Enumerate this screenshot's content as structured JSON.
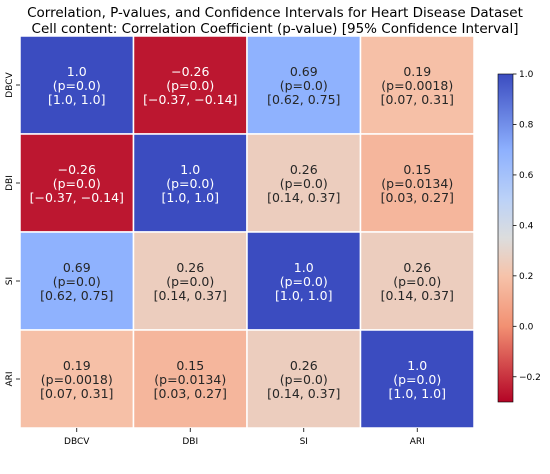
{
  "chart_data": {
    "type": "heatmap",
    "title": "Correlation, P-values, and Confidence Intervals for Heart Disease Dataset",
    "subtitle": "Cell content: Correlation Coefficient (p-value) [95% Confidence Interval]",
    "rows": [
      "DBCV",
      "DBI",
      "SI",
      "ARI"
    ],
    "columns": [
      "DBCV",
      "DBI",
      "SI",
      "ARI"
    ],
    "values": [
      [
        1.0,
        -0.26,
        0.69,
        0.19
      ],
      [
        -0.26,
        1.0,
        0.26,
        0.15
      ],
      [
        0.69,
        0.26,
        1.0,
        0.26
      ],
      [
        0.19,
        0.15,
        0.26,
        1.0
      ]
    ],
    "cells": [
      [
        {
          "r": "1.0",
          "p": "(p=0.0)",
          "ci": "[1.0, 1.0]"
        },
        {
          "r": "−0.26",
          "p": "(p=0.0)",
          "ci": "[−0.37, −0.14]"
        },
        {
          "r": "0.69",
          "p": "(p=0.0)",
          "ci": "[0.62, 0.75]"
        },
        {
          "r": "0.19",
          "p": "(p=0.0018)",
          "ci": "[0.07, 0.31]"
        }
      ],
      [
        {
          "r": "−0.26",
          "p": "(p=0.0)",
          "ci": "[−0.37, −0.14]"
        },
        {
          "r": "1.0",
          "p": "(p=0.0)",
          "ci": "[1.0, 1.0]"
        },
        {
          "r": "0.26",
          "p": "(p=0.0)",
          "ci": "[0.14, 0.37]"
        },
        {
          "r": "0.15",
          "p": "(p=0.0134)",
          "ci": "[0.03, 0.27]"
        }
      ],
      [
        {
          "r": "0.69",
          "p": "(p=0.0)",
          "ci": "[0.62, 0.75]"
        },
        {
          "r": "0.26",
          "p": "(p=0.0)",
          "ci": "[0.14, 0.37]"
        },
        {
          "r": "1.0",
          "p": "(p=0.0)",
          "ci": "[1.0, 1.0]"
        },
        {
          "r": "0.26",
          "p": "(p=0.0)",
          "ci": "[0.14, 0.37]"
        }
      ],
      [
        {
          "r": "0.19",
          "p": "(p=0.0018)",
          "ci": "[0.07, 0.31]"
        },
        {
          "r": "0.15",
          "p": "(p=0.0134)",
          "ci": "[0.03, 0.27]"
        },
        {
          "r": "0.26",
          "p": "(p=0.0)",
          "ci": "[0.14, 0.37]"
        },
        {
          "r": "1.0",
          "p": "(p=0.0)",
          "ci": "[1.0, 1.0]"
        }
      ]
    ],
    "colorbar": {
      "min": -0.3,
      "max": 1.0,
      "ticks": [
        1.0,
        0.8,
        0.6,
        0.4,
        0.2,
        0.0,
        -0.2
      ],
      "tick_labels": [
        "1.0",
        "0.8",
        "0.6",
        "0.4",
        "0.2",
        "0.0",
        "−0.2"
      ],
      "colormap": "coolwarm_r",
      "stops": [
        {
          "v": -0.3,
          "color": "#b40426"
        },
        {
          "v": 0.0,
          "color": "#f29072"
        },
        {
          "v": 0.2,
          "color": "#f6c3aa"
        },
        {
          "v": 0.35,
          "color": "#dcdddd"
        },
        {
          "v": 0.5,
          "color": "#bcd2f7"
        },
        {
          "v": 0.7,
          "color": "#8db0fe"
        },
        {
          "v": 1.0,
          "color": "#3b4cc0"
        }
      ]
    },
    "grid": true,
    "legend": "colorbar-right"
  }
}
